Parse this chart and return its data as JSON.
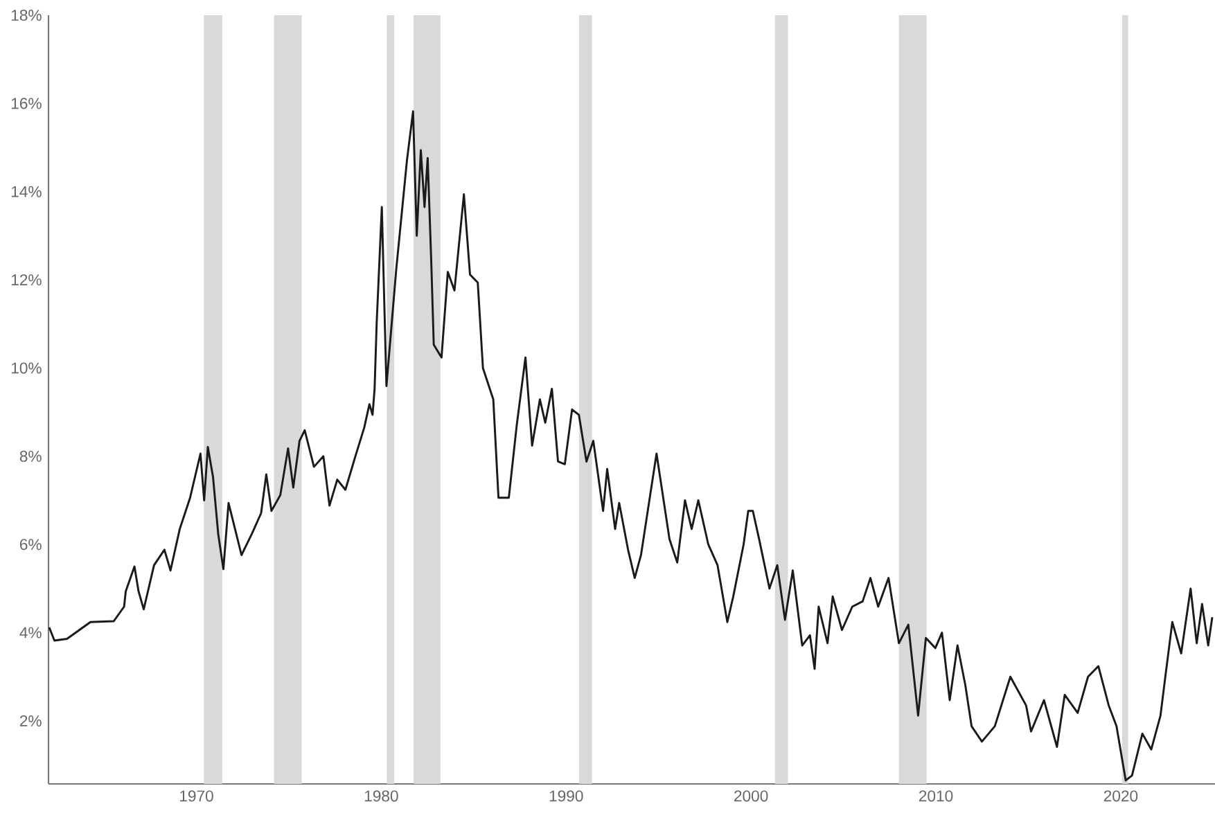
{
  "chart_data": {
    "type": "line",
    "xlim": [
      1962.0,
      2025.1
    ],
    "ylim": [
      0.57,
      18
    ],
    "xticks": [
      1970,
      1980,
      1990,
      2000,
      2010,
      2020
    ],
    "yticks": [
      {
        "value": 2,
        "label": "2%"
      },
      {
        "value": 4,
        "label": "4%"
      },
      {
        "value": 6,
        "label": "6%"
      },
      {
        "value": 8,
        "label": "8%"
      },
      {
        "value": 10,
        "label": "10%"
      },
      {
        "value": 12,
        "label": "12%"
      },
      {
        "value": 14,
        "label": "14%"
      },
      {
        "value": 16,
        "label": "16%"
      },
      {
        "value": 18,
        "label": "18%"
      }
    ],
    "grid": false,
    "marker": "none",
    "line_style": "solid",
    "bands": [
      {
        "axis": "x",
        "from": 1970.4,
        "to": 1971.4,
        "color": "#d9d9d9"
      },
      {
        "axis": "x",
        "from": 1974.2,
        "to": 1975.7,
        "color": "#d9d9d9"
      },
      {
        "axis": "x",
        "from": 1980.3,
        "to": 1980.7,
        "color": "#d9d9d9"
      },
      {
        "axis": "x",
        "from": 1981.75,
        "to": 1983.2,
        "color": "#d9d9d9"
      },
      {
        "axis": "x",
        "from": 1990.7,
        "to": 1991.4,
        "color": "#d9d9d9"
      },
      {
        "axis": "x",
        "from": 2001.3,
        "to": 2002.0,
        "color": "#d9d9d9"
      },
      {
        "axis": "x",
        "from": 2008.0,
        "to": 2009.5,
        "color": "#d9d9d9"
      },
      {
        "axis": "x",
        "from": 2020.07,
        "to": 2020.4,
        "color": "#d9d9d9"
      }
    ],
    "series": [
      {
        "color": "#1a1a1a",
        "x": [
          1962.04,
          1962.32,
          1963.0,
          1964.27,
          1965.53,
          1966.09,
          1966.18,
          1966.65,
          1966.87,
          1967.15,
          1967.71,
          1968.27,
          1968.6,
          1969.1,
          1969.66,
          1970.22,
          1970.42,
          1970.62,
          1970.9,
          1971.18,
          1971.46,
          1971.74,
          1972.44,
          1973.0,
          1973.5,
          1973.78,
          1974.06,
          1974.54,
          1974.96,
          1975.24,
          1975.58,
          1975.86,
          1976.36,
          1976.87,
          1977.2,
          1977.62,
          1978.06,
          1978.6,
          1979.08,
          1979.36,
          1979.53,
          1979.64,
          1979.75,
          1980.03,
          1980.28,
          1980.81,
          1981.39,
          1981.72,
          1981.92,
          1982.14,
          1982.34,
          1982.51,
          1982.7,
          1982.84,
          1983.26,
          1983.6,
          1983.96,
          1984.47,
          1984.8,
          1985.22,
          1985.5,
          1986.06,
          1986.34,
          1986.9,
          1987.33,
          1987.8,
          1988.16,
          1988.58,
          1988.87,
          1989.23,
          1989.56,
          1989.93,
          1990.32,
          1990.69,
          1991.1,
          1991.47,
          1992.0,
          1992.22,
          1992.65,
          1992.87,
          1993.35,
          1993.71,
          1994.05,
          1994.89,
          1995.59,
          1996.01,
          1996.43,
          1996.79,
          1997.15,
          1997.69,
          1998.19,
          1998.72,
          1999.04,
          1999.6,
          1999.85,
          2000.1,
          2000.44,
          2001.0,
          2001.42,
          2001.84,
          2002.26,
          2002.77,
          2003.19,
          2003.44,
          2003.66,
          2004.14,
          2004.42,
          2004.92,
          2005.48,
          2006.04,
          2006.46,
          2006.88,
          2007.44,
          2008.0,
          2008.51,
          2009.04,
          2009.46,
          2009.97,
          2010.33,
          2010.75,
          2011.17,
          2011.59,
          2011.93,
          2012.49,
          2013.19,
          2014.03,
          2014.88,
          2015.15,
          2015.85,
          2016.55,
          2016.97,
          2017.67,
          2018.23,
          2018.79,
          2019.35,
          2019.77,
          2020.27,
          2020.61,
          2021.17,
          2021.65,
          2022.15,
          2022.43,
          2022.79,
          2023.27,
          2023.78,
          2024.11,
          2024.4,
          2024.73,
          2024.95
        ],
        "values": [
          4.12,
          3.82,
          3.86,
          4.24,
          4.26,
          4.59,
          4.94,
          5.5,
          4.94,
          4.53,
          5.53,
          5.88,
          5.41,
          6.35,
          7.06,
          8.06,
          7.0,
          8.21,
          7.53,
          6.24,
          5.44,
          6.94,
          5.76,
          6.24,
          6.71,
          7.59,
          6.76,
          7.12,
          8.18,
          7.29,
          8.35,
          8.59,
          7.76,
          8.0,
          6.88,
          7.47,
          7.24,
          8.0,
          8.65,
          9.18,
          8.94,
          9.53,
          11.0,
          13.65,
          9.59,
          12.24,
          14.71,
          15.82,
          13.0,
          14.94,
          13.65,
          14.76,
          12.47,
          10.53,
          10.24,
          12.18,
          11.76,
          13.94,
          12.12,
          11.94,
          10.0,
          9.29,
          7.06,
          7.06,
          8.71,
          10.24,
          8.24,
          9.29,
          8.76,
          9.53,
          7.88,
          7.82,
          9.06,
          8.94,
          7.88,
          8.35,
          6.76,
          7.71,
          6.35,
          6.94,
          5.88,
          5.24,
          5.76,
          8.06,
          6.12,
          5.59,
          7.0,
          6.35,
          7.0,
          6.0,
          5.53,
          4.24,
          4.82,
          6.0,
          6.76,
          6.76,
          6.12,
          5.0,
          5.53,
          4.29,
          5.41,
          3.71,
          3.94,
          3.18,
          4.59,
          3.76,
          4.82,
          4.06,
          4.59,
          4.71,
          5.24,
          4.59,
          5.24,
          3.76,
          4.18,
          2.12,
          3.88,
          3.65,
          4.0,
          2.47,
          3.71,
          2.82,
          1.88,
          1.53,
          1.88,
          3.0,
          2.35,
          1.76,
          2.47,
          1.41,
          2.59,
          2.18,
          3.0,
          3.24,
          2.35,
          1.88,
          0.65,
          0.76,
          1.71,
          1.35,
          2.12,
          3.06,
          4.24,
          3.53,
          5.0,
          3.76,
          4.65,
          3.71,
          4.35
        ]
      }
    ]
  }
}
